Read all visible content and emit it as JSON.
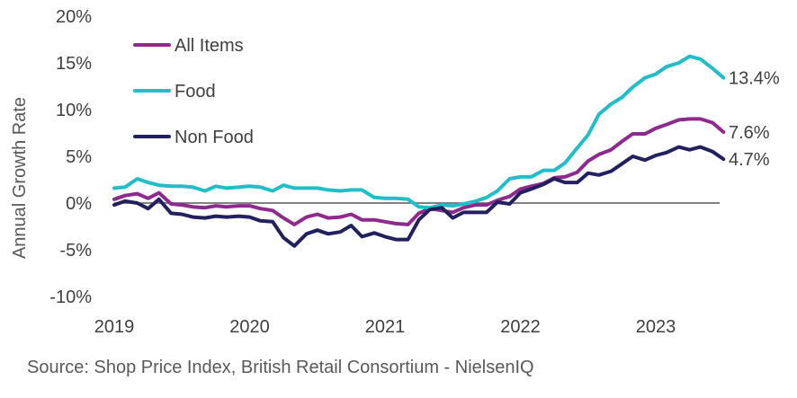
{
  "chart_data": {
    "type": "line",
    "ylabel": "Annual Growth Rate",
    "xlabel": "",
    "ylim": [
      -10,
      20
    ],
    "y_ticks": [
      -10,
      -5,
      0,
      5,
      10,
      15,
      20
    ],
    "y_tick_labels": [
      "-10%",
      "-5%",
      "0%",
      "5%",
      "10%",
      "15%",
      "20%"
    ],
    "x_tick_labels": [
      "2019",
      "2020",
      "2021",
      "2022",
      "2023"
    ],
    "x_ticks": [
      2019.0,
      2020.0,
      2021.0,
      2022.0,
      2023.0
    ],
    "x_range": [
      2019.0,
      2023.6
    ],
    "zero_line": true,
    "legend_position": "top-left",
    "series": [
      {
        "name": "All Items",
        "color": "#8E2A8E",
        "end_label": "7.6%",
        "x": [
          2019.0,
          2019.08,
          2019.17,
          2019.25,
          2019.33,
          2019.42,
          2019.5,
          2019.58,
          2019.67,
          2019.75,
          2019.83,
          2019.92,
          2020.0,
          2020.08,
          2020.17,
          2020.25,
          2020.33,
          2020.42,
          2020.5,
          2020.58,
          2020.67,
          2020.75,
          2020.83,
          2020.92,
          2021.0,
          2021.08,
          2021.17,
          2021.25,
          2021.33,
          2021.42,
          2021.5,
          2021.58,
          2021.67,
          2021.75,
          2021.83,
          2021.92,
          2022.0,
          2022.08,
          2022.17,
          2022.25,
          2022.33,
          2022.42,
          2022.5,
          2022.58,
          2022.67,
          2022.75,
          2022.83,
          2022.92,
          2023.0,
          2023.08,
          2023.17,
          2023.25,
          2023.33,
          2023.42,
          2023.5
        ],
        "values": [
          0.4,
          0.8,
          1.0,
          0.5,
          1.1,
          -0.1,
          -0.2,
          -0.4,
          -0.5,
          -0.3,
          -0.4,
          -0.3,
          -0.3,
          -0.6,
          -0.8,
          -1.6,
          -2.3,
          -1.5,
          -1.2,
          -1.6,
          -1.5,
          -1.2,
          -1.8,
          -1.8,
          -2.0,
          -2.2,
          -2.3,
          -1.1,
          -0.6,
          -0.8,
          -1.0,
          -0.5,
          -0.2,
          -0.2,
          0.3,
          0.7,
          1.5,
          1.8,
          2.1,
          2.7,
          2.8,
          3.3,
          4.5,
          5.2,
          5.7,
          6.6,
          7.4,
          7.4,
          8.0,
          8.4,
          8.9,
          9.0,
          9.0,
          8.6,
          7.6
        ]
      },
      {
        "name": "Food",
        "color": "#21BEC9",
        "end_label": "13.4%",
        "x": [
          2019.0,
          2019.08,
          2019.17,
          2019.25,
          2019.33,
          2019.42,
          2019.5,
          2019.58,
          2019.67,
          2019.75,
          2019.83,
          2019.92,
          2020.0,
          2020.08,
          2020.17,
          2020.25,
          2020.33,
          2020.42,
          2020.5,
          2020.58,
          2020.67,
          2020.75,
          2020.83,
          2020.92,
          2021.0,
          2021.08,
          2021.17,
          2021.25,
          2021.33,
          2021.42,
          2021.5,
          2021.58,
          2021.67,
          2021.75,
          2021.83,
          2021.92,
          2022.0,
          2022.08,
          2022.17,
          2022.25,
          2022.33,
          2022.42,
          2022.5,
          2022.58,
          2022.67,
          2022.75,
          2022.83,
          2022.92,
          2023.0,
          2023.08,
          2023.17,
          2023.25,
          2023.33,
          2023.42,
          2023.5
        ],
        "values": [
          1.6,
          1.7,
          2.6,
          2.2,
          1.9,
          1.8,
          1.8,
          1.7,
          1.3,
          1.8,
          1.6,
          1.7,
          1.8,
          1.7,
          1.3,
          1.9,
          1.6,
          1.6,
          1.6,
          1.4,
          1.3,
          1.4,
          1.4,
          0.6,
          0.5,
          0.5,
          0.4,
          -0.4,
          -0.5,
          -0.2,
          -0.3,
          -0.1,
          0.2,
          0.6,
          1.3,
          2.6,
          2.8,
          2.8,
          3.5,
          3.5,
          4.3,
          5.9,
          7.3,
          9.5,
          10.6,
          11.3,
          12.4,
          13.4,
          13.8,
          14.6,
          15.0,
          15.7,
          15.4,
          14.4,
          13.4
        ]
      },
      {
        "name": "Non Food",
        "color": "#23205F",
        "end_label": "4.7%",
        "x": [
          2019.0,
          2019.08,
          2019.17,
          2019.25,
          2019.33,
          2019.42,
          2019.5,
          2019.58,
          2019.67,
          2019.75,
          2019.83,
          2019.92,
          2020.0,
          2020.08,
          2020.17,
          2020.25,
          2020.33,
          2020.42,
          2020.5,
          2020.58,
          2020.67,
          2020.75,
          2020.83,
          2020.92,
          2021.0,
          2021.08,
          2021.17,
          2021.25,
          2021.33,
          2021.42,
          2021.5,
          2021.58,
          2021.67,
          2021.75,
          2021.83,
          2021.92,
          2022.0,
          2022.08,
          2022.17,
          2022.25,
          2022.33,
          2022.42,
          2022.5,
          2022.58,
          2022.67,
          2022.75,
          2022.83,
          2022.92,
          2023.0,
          2023.08,
          2023.17,
          2023.25,
          2023.33,
          2023.42,
          2023.5
        ],
        "values": [
          -0.2,
          0.2,
          0.0,
          -0.6,
          0.4,
          -1.1,
          -1.2,
          -1.5,
          -1.6,
          -1.4,
          -1.5,
          -1.4,
          -1.5,
          -1.9,
          -2.0,
          -3.7,
          -4.6,
          -3.3,
          -2.9,
          -3.3,
          -3.1,
          -2.4,
          -3.6,
          -3.2,
          -3.6,
          -3.9,
          -3.9,
          -1.8,
          -0.7,
          -0.5,
          -1.6,
          -1.0,
          -1.0,
          -1.0,
          0.1,
          -0.1,
          1.1,
          1.5,
          2.0,
          2.6,
          2.2,
          2.2,
          3.2,
          3.0,
          3.4,
          4.2,
          5.0,
          4.6,
          5.1,
          5.4,
          6.0,
          5.7,
          6.0,
          5.5,
          4.7
        ]
      }
    ]
  },
  "source_text": "Source: Shop Price Index, British Retail Consortium - NielsenIQ"
}
